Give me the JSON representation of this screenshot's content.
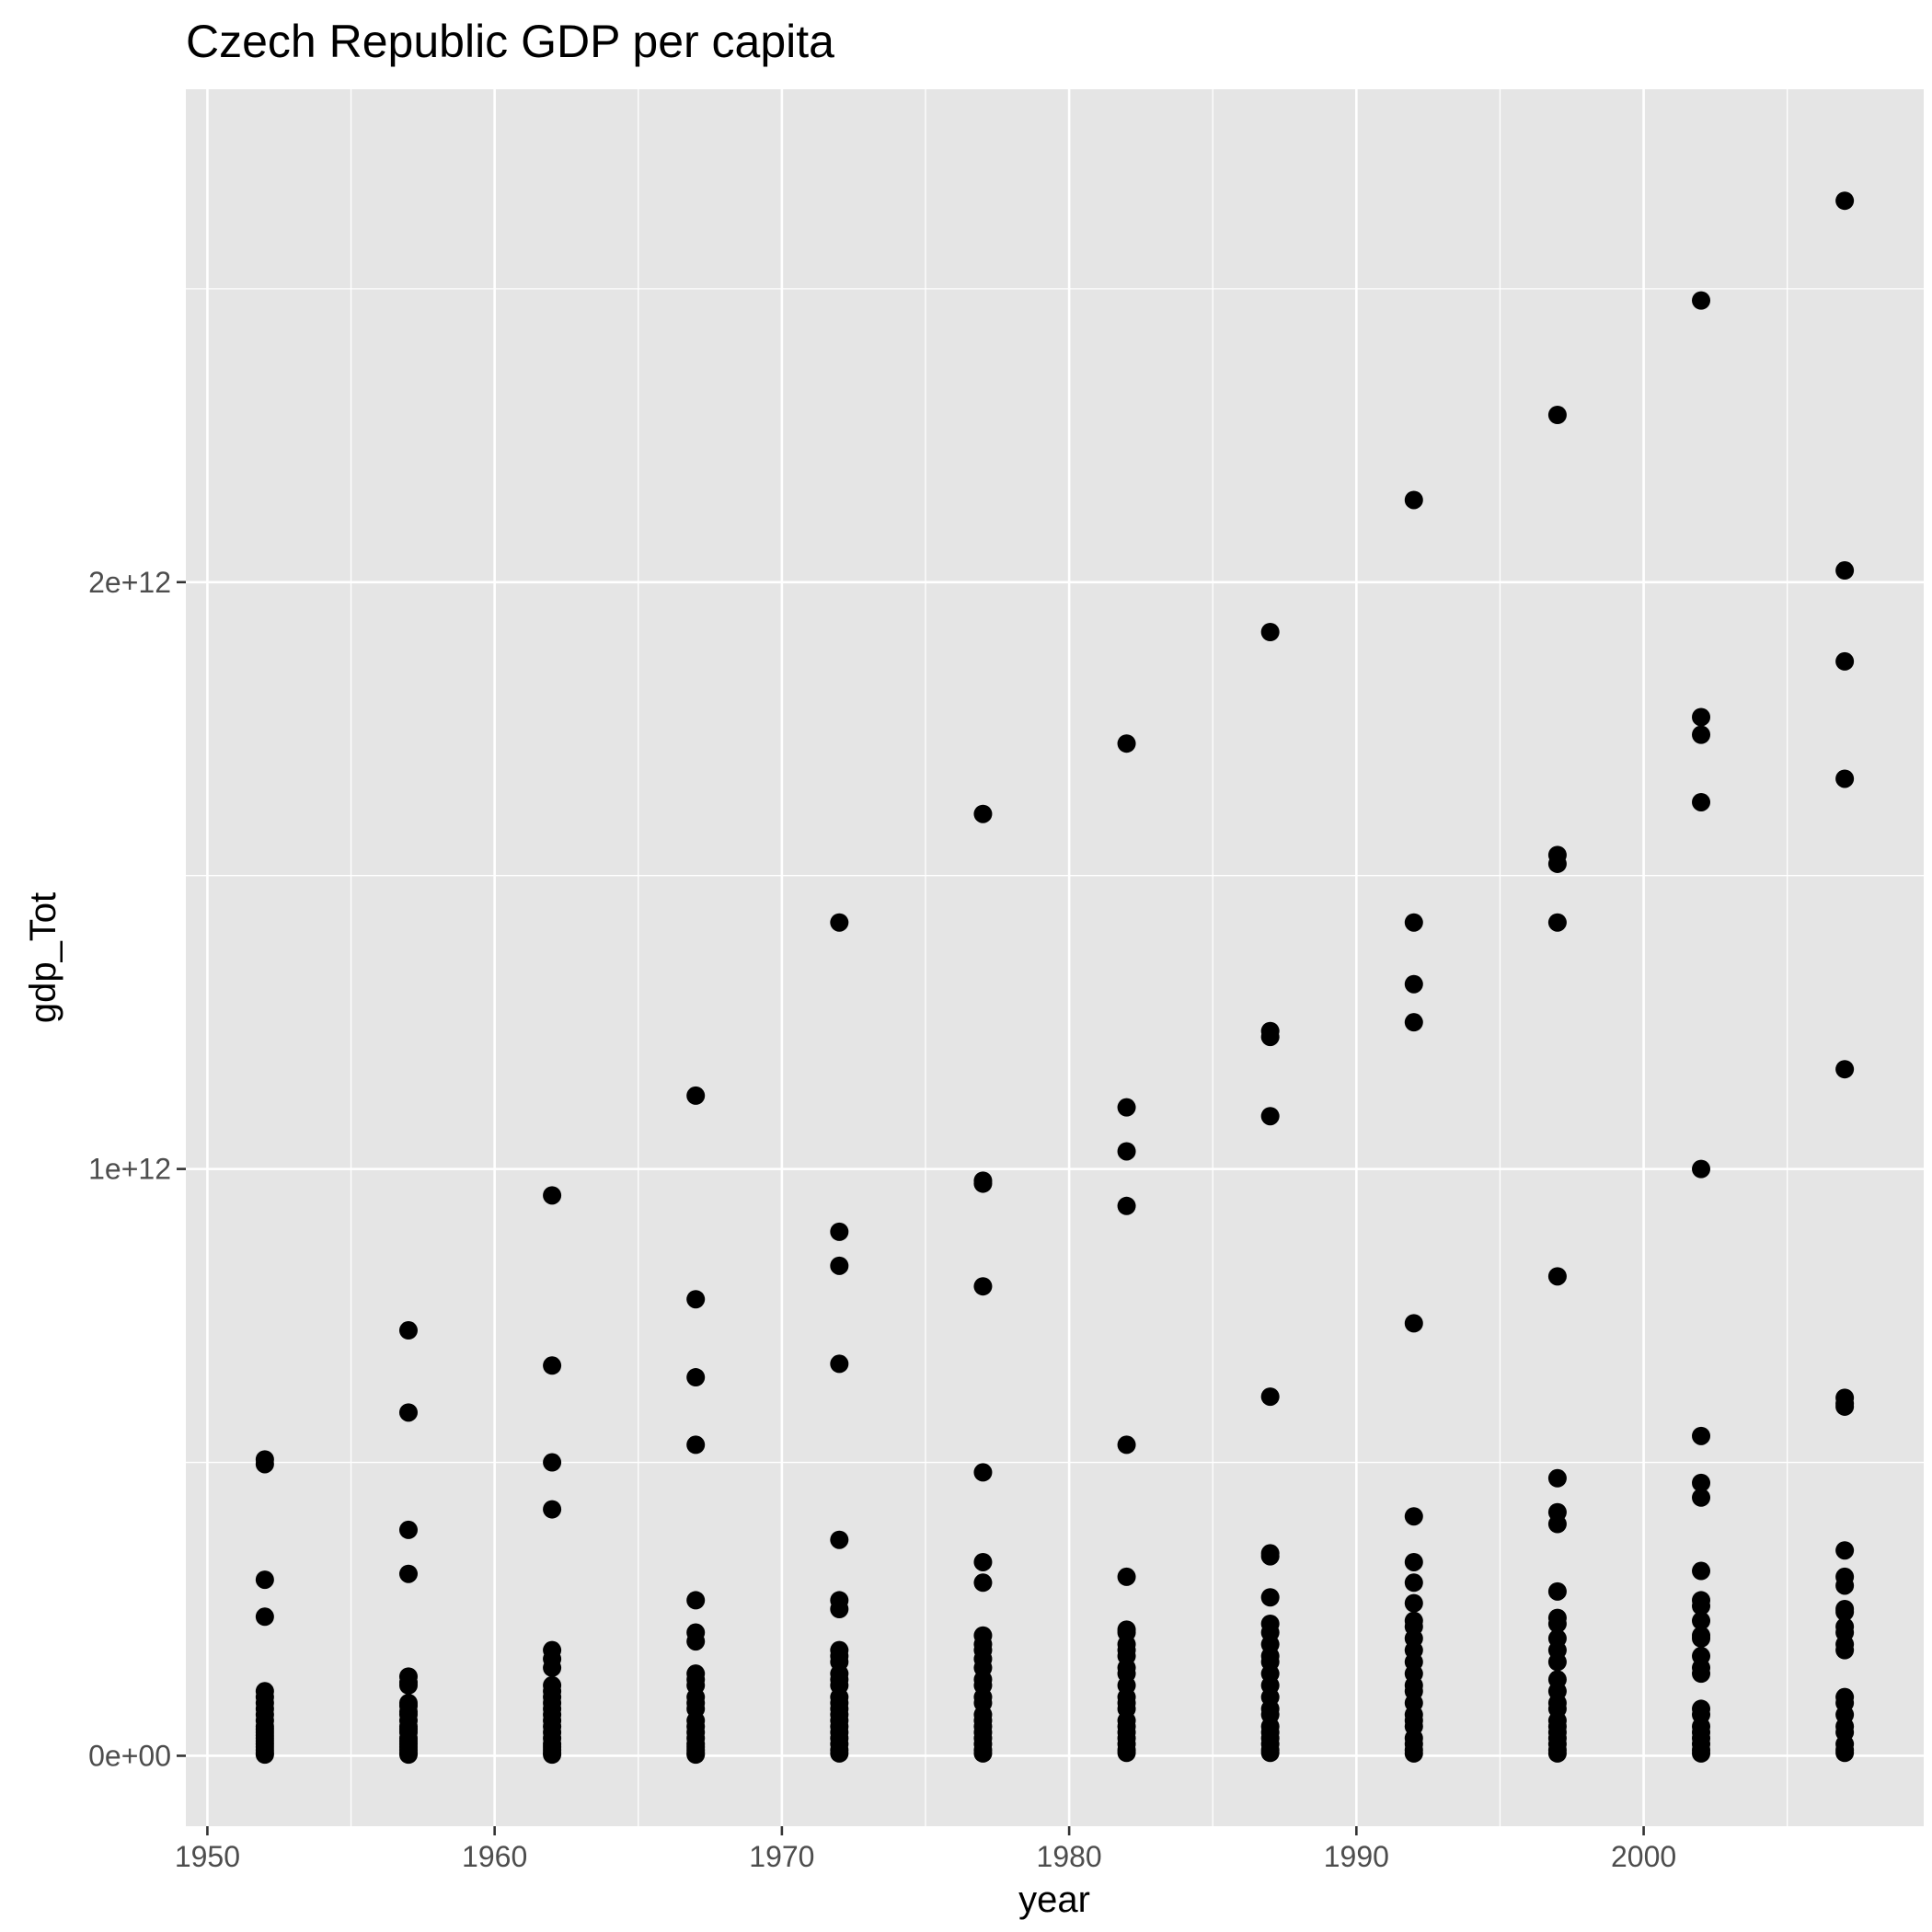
{
  "chart_data": {
    "type": "scatter",
    "title": "Czech Republic GDP per capita",
    "xlabel": "year",
    "ylabel": "gdp_Tot",
    "xlim": [
      1949.25,
      2009.75
    ],
    "ylim": [
      -120000000000.0,
      2840000000000.0
    ],
    "x_ticks": [
      1950,
      1960,
      1970,
      1980,
      1990,
      2000
    ],
    "x_tick_labels": [
      "1950",
      "1960",
      "1970",
      "1980",
      "1990",
      "2000"
    ],
    "y_ticks": [
      0,
      1000000000000.0,
      2000000000000.0
    ],
    "y_tick_labels": [
      "0e+00",
      "1e+12",
      "2e+12"
    ],
    "grid": true,
    "point_color": "#000000",
    "panel_color": "#e5e5e5",
    "grid_color": "#ffffff",
    "points_by_year": [
      {
        "year": 1952,
        "values": [
          505000000000.0,
          497000000000.0,
          300000000000.0,
          237000000000.0,
          110000000000.0,
          100000000000.0,
          90000000000.0,
          80000000000.0,
          70000000000.0,
          60000000000.0,
          50000000000.0,
          45000000000.0,
          40000000000.0,
          35000000000.0,
          30000000000.0,
          25000000000.0,
          20000000000.0,
          15000000000.0,
          10000000000.0,
          5000000000.0,
          2000000000.0
        ]
      },
      {
        "year": 1957,
        "values": [
          725000000000.0,
          585000000000.0,
          385000000000.0,
          310000000000.0,
          135000000000.0,
          125000000000.0,
          120000000000.0,
          90000000000.0,
          85000000000.0,
          75000000000.0,
          70000000000.0,
          60000000000.0,
          50000000000.0,
          45000000000.0,
          40000000000.0,
          30000000000.0,
          25000000000.0,
          20000000000.0,
          15000000000.0,
          10000000000.0,
          5000000000.0,
          2000000000.0
        ]
      },
      {
        "year": 1962,
        "values": [
          955000000000.0,
          665000000000.0,
          500000000000.0,
          420000000000.0,
          180000000000.0,
          165000000000.0,
          150000000000.0,
          120000000000.0,
          110000000000.0,
          100000000000.0,
          90000000000.0,
          80000000000.0,
          70000000000.0,
          60000000000.0,
          50000000000.0,
          40000000000.0,
          30000000000.0,
          20000000000.0,
          15000000000.0,
          10000000000.0,
          5000000000.0,
          2000000000.0
        ]
      },
      {
        "year": 1967,
        "values": [
          1125000000000.0,
          778000000000.0,
          645000000000.0,
          530000000000.0,
          265000000000.0,
          210000000000.0,
          195000000000.0,
          140000000000.0,
          130000000000.0,
          120000000000.0,
          100000000000.0,
          90000000000.0,
          80000000000.0,
          60000000000.0,
          50000000000.0,
          40000000000.0,
          30000000000.0,
          20000000000.0,
          15000000000.0,
          10000000000.0,
          5000000000.0,
          2000000000.0
        ]
      },
      {
        "year": 1972,
        "values": [
          1420000000000.0,
          893000000000.0,
          835000000000.0,
          668000000000.0,
          368000000000.0,
          265000000000.0,
          250000000000.0,
          180000000000.0,
          170000000000.0,
          160000000000.0,
          140000000000.0,
          130000000000.0,
          120000000000.0,
          100000000000.0,
          90000000000.0,
          80000000000.0,
          70000000000.0,
          60000000000.0,
          50000000000.0,
          40000000000.0,
          30000000000.0,
          20000000000.0,
          10000000000.0,
          4000000000.0
        ]
      },
      {
        "year": 1977,
        "values": [
          1605000000000.0,
          980000000000.0,
          975000000000.0,
          800000000000.0,
          483000000000.0,
          330000000000.0,
          295000000000.0,
          205000000000.0,
          190000000000.0,
          180000000000.0,
          165000000000.0,
          150000000000.0,
          130000000000.0,
          120000000000.0,
          100000000000.0,
          90000000000.0,
          70000000000.0,
          60000000000.0,
          50000000000.0,
          40000000000.0,
          30000000000.0,
          20000000000.0,
          10000000000.0,
          4000000000.0
        ]
      },
      {
        "year": 1982,
        "values": [
          1725000000000.0,
          1105000000000.0,
          1030000000000.0,
          937000000000.0,
          530000000000.0,
          305000000000.0,
          215000000000.0,
          210000000000.0,
          190000000000.0,
          180000000000.0,
          170000000000.0,
          150000000000.0,
          140000000000.0,
          120000000000.0,
          100000000000.0,
          90000000000.0,
          80000000000.0,
          60000000000.0,
          50000000000.0,
          40000000000.0,
          30000000000.0,
          20000000000.0,
          10000000000.0,
          5000000000.0
        ]
      },
      {
        "year": 1987,
        "values": [
          1915000000000.0,
          1235000000000.0,
          1225000000000.0,
          1090000000000.0,
          612000000000.0,
          345000000000.0,
          340000000000.0,
          270000000000.0,
          225000000000.0,
          210000000000.0,
          190000000000.0,
          170000000000.0,
          160000000000.0,
          140000000000.0,
          120000000000.0,
          100000000000.0,
          80000000000.0,
          70000000000.0,
          50000000000.0,
          40000000000.0,
          30000000000.0,
          20000000000.0,
          10000000000.0,
          5000000000.0
        ]
      },
      {
        "year": 1992,
        "values": [
          2140000000000.0,
          1420000000000.0,
          1315000000000.0,
          1250000000000.0,
          737000000000.0,
          408000000000.0,
          330000000000.0,
          295000000000.0,
          260000000000.0,
          230000000000.0,
          220000000000.0,
          200000000000.0,
          180000000000.0,
          160000000000.0,
          140000000000.0,
          120000000000.0,
          110000000000.0,
          90000000000.0,
          70000000000.0,
          60000000000.0,
          50000000000.0,
          30000000000.0,
          20000000000.0,
          10000000000.0,
          4000000000.0
        ]
      },
      {
        "year": 1997,
        "values": [
          2285000000000.0,
          1535000000000.0,
          1520000000000.0,
          1420000000000.0,
          817000000000.0,
          473000000000.0,
          415000000000.0,
          395000000000.0,
          280000000000.0,
          235000000000.0,
          225000000000.0,
          200000000000.0,
          180000000000.0,
          160000000000.0,
          130000000000.0,
          110000000000.0,
          90000000000.0,
          80000000000.0,
          60000000000.0,
          50000000000.0,
          40000000000.0,
          30000000000.0,
          20000000000.0,
          10000000000.0,
          4000000000.0
        ]
      },
      {
        "year": 2002,
        "values": [
          2480000000000.0,
          1770000000000.0,
          1740000000000.0,
          1625000000000.0,
          1000000000000.0,
          545000000000.0,
          465000000000.0,
          440000000000.0,
          315000000000.0,
          265000000000.0,
          255000000000.0,
          230000000000.0,
          205000000000.0,
          200000000000.0,
          170000000000.0,
          150000000000.0,
          140000000000.0,
          80000000000.0,
          70000000000.0,
          50000000000.0,
          40000000000.0,
          30000000000.0,
          20000000000.0,
          10000000000.0,
          4000000000.0
        ]
      },
      {
        "year": 2007,
        "values": [
          2650000000000.0,
          2020000000000.0,
          1865000000000.0,
          1665000000000.0,
          1170000000000.0,
          610000000000.0,
          600000000000.0,
          595000000000.0,
          350000000000.0,
          305000000000.0,
          290000000000.0,
          250000000000.0,
          245000000000.0,
          220000000000.0,
          210000000000.0,
          190000000000.0,
          180000000000.0,
          100000000000.0,
          90000000000.0,
          70000000000.0,
          50000000000.0,
          40000000000.0,
          20000000000.0,
          10000000000.0,
          5000000000.0
        ]
      }
    ]
  }
}
